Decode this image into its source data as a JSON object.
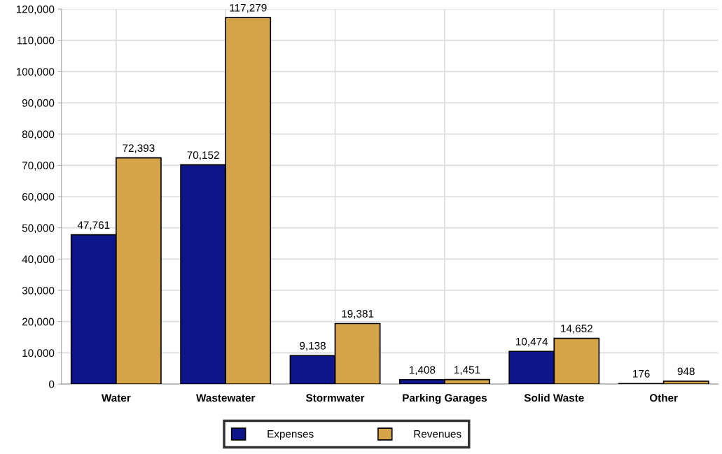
{
  "chart_data": {
    "type": "bar",
    "categories": [
      "Water",
      "Wastewater",
      "Stormwater",
      "Parking Garages",
      "Solid Waste",
      "Other"
    ],
    "series": [
      {
        "name": "Expenses",
        "color": "#0c168a",
        "values": [
          47761,
          70152,
          9138,
          1408,
          10474,
          176
        ],
        "value_labels": [
          "47,761",
          "70,152",
          "9,138",
          "1,408",
          "10,474",
          "176"
        ]
      },
      {
        "name": "Revenues",
        "color": "#d4a447",
        "values": [
          72393,
          117279,
          19381,
          1451,
          14652,
          948
        ],
        "value_labels": [
          "72,393",
          "117,279",
          "19,381",
          "1,451",
          "14,652",
          "948"
        ]
      }
    ],
    "ylim": [
      0,
      120000
    ],
    "yticks": [
      {
        "value": 0,
        "label": "0"
      },
      {
        "value": 10000,
        "label": "10,000"
      },
      {
        "value": 20000,
        "label": "20,000"
      },
      {
        "value": 30000,
        "label": "30,000"
      },
      {
        "value": 40000,
        "label": "40,000"
      },
      {
        "value": 50000,
        "label": "50,000"
      },
      {
        "value": 60000,
        "label": "60,000"
      },
      {
        "value": 70000,
        "label": "70,000"
      },
      {
        "value": 80000,
        "label": "80,000"
      },
      {
        "value": 90000,
        "label": "90,000"
      },
      {
        "value": 100000,
        "label": "100,000"
      },
      {
        "value": 110000,
        "label": "110,000"
      },
      {
        "value": 120000,
        "label": "120,000"
      }
    ],
    "grid": true,
    "legend": "bottom"
  }
}
